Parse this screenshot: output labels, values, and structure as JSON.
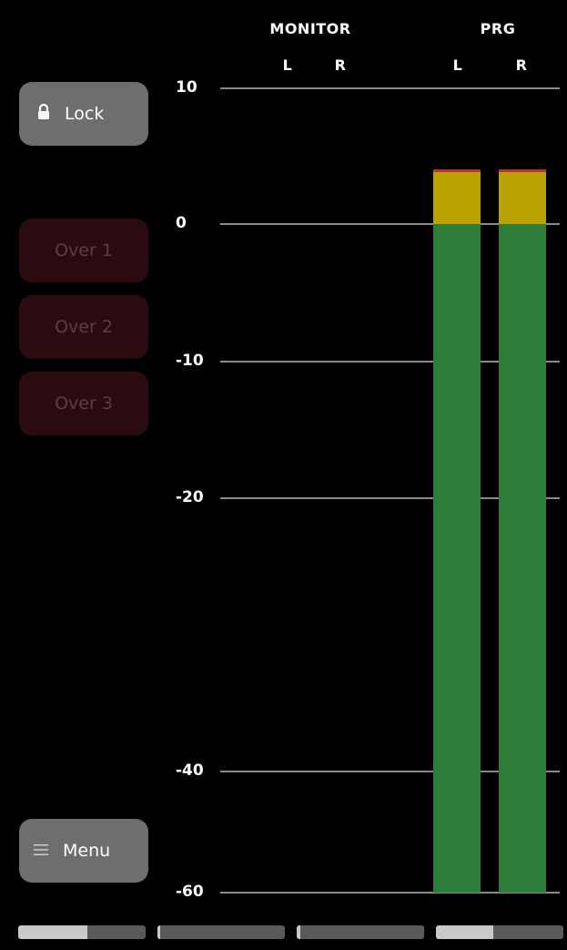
{
  "lock_button": {
    "label": "Lock"
  },
  "over_buttons": [
    {
      "label": "Over 1"
    },
    {
      "label": "Over 2"
    },
    {
      "label": "Over 3"
    }
  ],
  "menu_button": {
    "label": "Menu"
  },
  "header": {
    "groups": [
      {
        "label": "MONITOR",
        "channels": [
          "L",
          "R"
        ]
      },
      {
        "label": "PRG",
        "channels": [
          "L",
          "R"
        ]
      }
    ]
  },
  "scale": {
    "ticks": [
      "10",
      "0",
      "-10",
      "-20",
      "-40",
      "-60"
    ],
    "tick_values": [
      10,
      0,
      -10,
      -20,
      -40,
      -60
    ]
  },
  "meters": {
    "monitor_l": null,
    "monitor_r": null,
    "prg_l": 4,
    "prg_r": 4
  },
  "colors": {
    "level_green": "#2e7c3a",
    "level_yellow": "#b8a300",
    "level_red": "#c03030",
    "button_active": "#6e6e6e",
    "button_over_inactive": "#2a0c10"
  },
  "scrollbars": [
    {
      "thumb_start": 0.0,
      "thumb_end": 0.54
    },
    {
      "thumb_start": 0.0,
      "thumb_end": 0.02
    },
    {
      "thumb_start": 0.0,
      "thumb_end": 0.03
    },
    {
      "thumb_start": 0.0,
      "thumb_end": 0.45
    }
  ]
}
